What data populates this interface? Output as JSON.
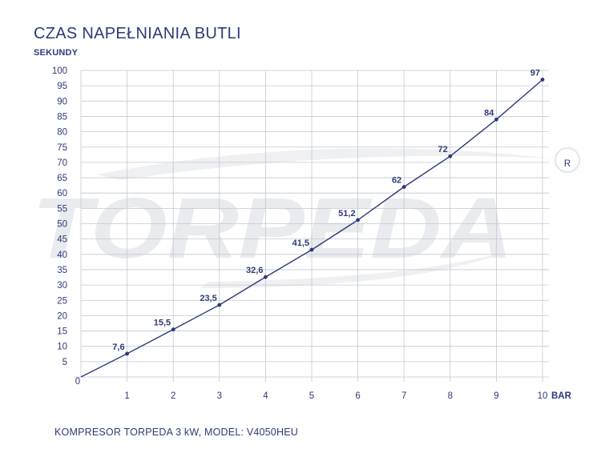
{
  "chart_data": {
    "type": "line",
    "title": "CZAS NAPEŁNIANIA BUTLI",
    "ylabel": "SEKUNDY",
    "xlabel": "BAR",
    "x": [
      0,
      1,
      2,
      3,
      4,
      5,
      6,
      7,
      8,
      9,
      10
    ],
    "y": [
      0,
      7.6,
      15.5,
      23.5,
      32.6,
      41.5,
      51.2,
      62,
      72,
      84,
      97
    ],
    "data_labels": [
      "",
      "7,6",
      "15,5",
      "23,5",
      "32,6",
      "41,5",
      "51,2",
      "62",
      "72",
      "84",
      "97"
    ],
    "xticks": [
      "1",
      "2",
      "3",
      "4",
      "5",
      "6",
      "7",
      "8",
      "9",
      "10"
    ],
    "yticks": [
      "5",
      "10",
      "15",
      "20",
      "25",
      "30",
      "35",
      "40",
      "45",
      "50",
      "55",
      "60",
      "65",
      "70",
      "75",
      "80",
      "85",
      "90",
      "95",
      "100"
    ],
    "origin_label": "0",
    "xlim": [
      0,
      10
    ],
    "ylim": [
      0,
      100
    ],
    "grid": true,
    "line_color": "#2e3a78",
    "grid_color": "#c4c8d4"
  },
  "watermark": {
    "text": "TORPEDA",
    "mark": "®"
  },
  "footer": "KOMPRESOR TORPEDA 3 kW, MODEL: V4050HEU"
}
